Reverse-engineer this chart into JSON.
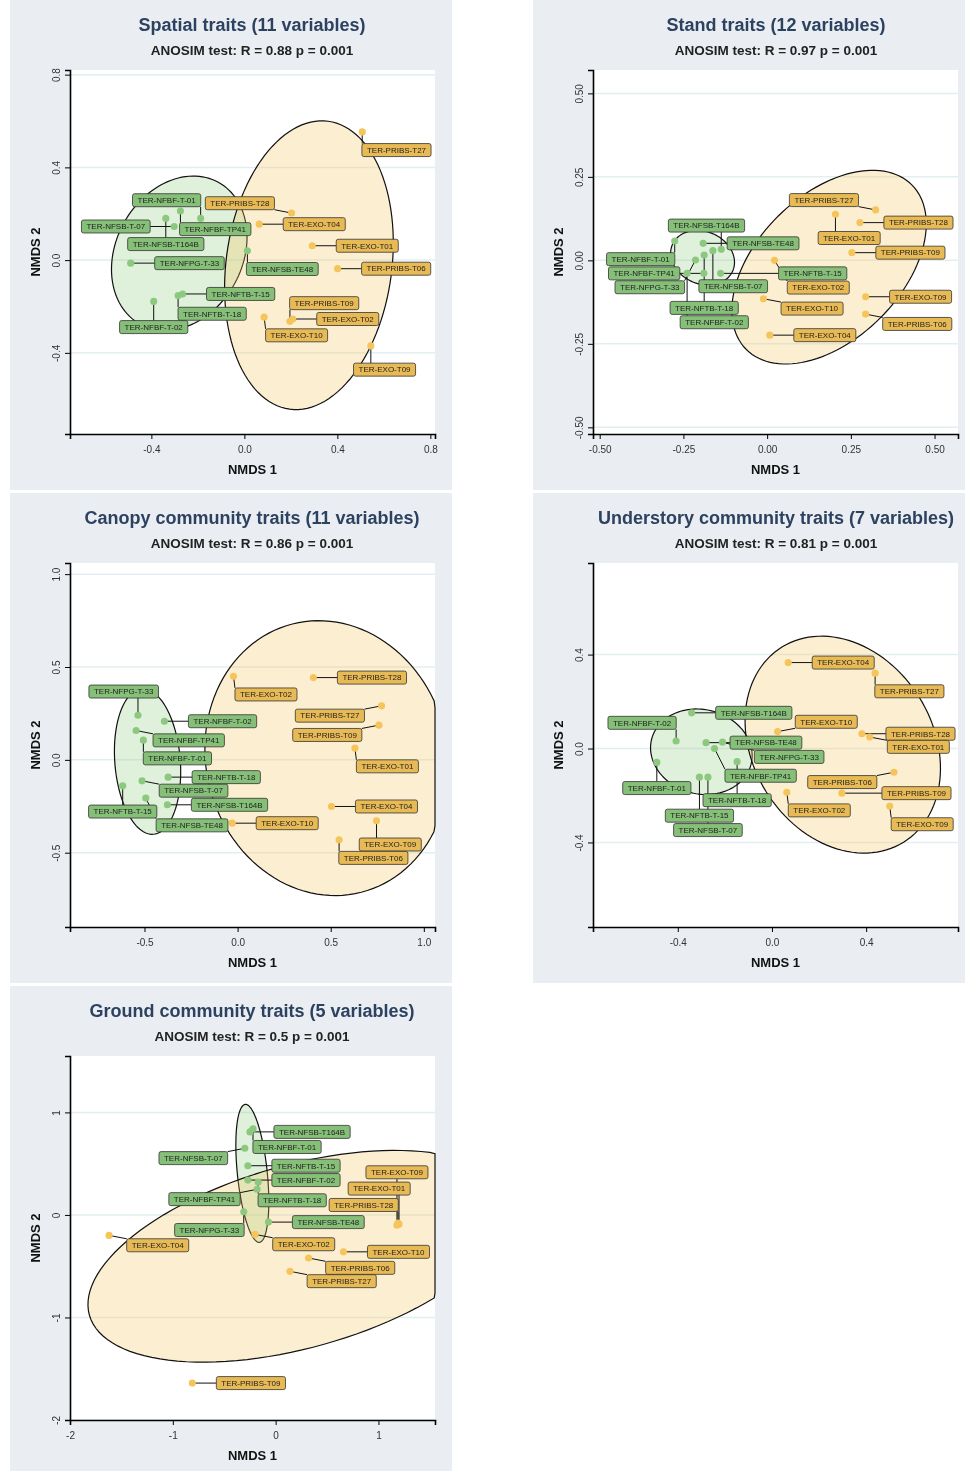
{
  "chart_data": [
    {
      "type": "scatter",
      "title": "Spatial traits (11 variables)",
      "subtitle": "ANOSIM test: R = 0.88 p = 0.001",
      "xlabel": "NMDS 1",
      "ylabel": "NMDS 2",
      "xlim": [
        -0.75,
        0.82
      ],
      "ylim": [
        -0.75,
        0.82
      ],
      "xticks": [
        -0.4,
        {
          "value": 0,
          "label": "0.0"
        },
        0.4,
        0.8
      ],
      "yticks": [
        -0.4,
        {
          "value": 0,
          "label": "0.0"
        },
        0.4,
        0.8
      ],
      "grid": "y",
      "marker": "circle",
      "series": [
        {
          "color": "#8cc97f",
          "x": [
            -0.275,
            -0.338,
            -0.188,
            -0.489,
            -0.302,
            -0.266,
            -0.285,
            0.013,
            -0.39
          ],
          "values": [
            0.212,
            0.18,
            0.18,
            -0.013,
            0.145,
            -0.146,
            -0.153,
            0.04,
            -0.178
          ],
          "value_labels": [
            "TER-NFBF-TP41",
            "TER-NFSB-T164B",
            "TER-NFBF-T-01",
            "TER-NFPG-T-33",
            "TER-NFSB-T-07",
            "TER-NFTB-T-15",
            "TER-NFTB-T-18",
            "TER-NFSB-TE48",
            "TER-NFBF-T-02"
          ]
        },
        {
          "color": "#f5c45a",
          "x": [
            0.064,
            0.507,
            0.203,
            0.292,
            0.401,
            0.085,
            0.208,
            0.196,
            0.544
          ],
          "values": [
            0.155,
            0.553,
            0.203,
            0.062,
            -0.037,
            -0.246,
            -0.254,
            -0.264,
            -0.37
          ],
          "value_labels": [
            "TER-EXO-T04",
            "TER-PRIBS-T27",
            "TER-PRIBS-T28",
            "TER-EXO-T01",
            "TER-PRIBS-T06",
            "TER-EXO-T10",
            "TER-EXO-T02",
            "TER-PRIBS-T09",
            "TER-EXO-T09"
          ]
        }
      ]
    },
    {
      "type": "scatter",
      "title": "Stand traits (12 variables)",
      "subtitle": "ANOSIM test: R = 0.97 p = 0.001",
      "xlabel": "NMDS 1",
      "ylabel": "NMDS 2",
      "xlim": [
        -0.52,
        0.57
      ],
      "ylim": [
        -0.52,
        0.57
      ],
      "xticks": [
        {
          "value": -0.5,
          "label": "-0.50"
        },
        -0.25,
        {
          "value": 0,
          "label": "0.00"
        },
        0.25,
        {
          "value": 0.5,
          "label": "0.50"
        }
      ],
      "yticks": [
        {
          "value": -0.5,
          "label": "-0.50"
        },
        -0.25,
        {
          "value": 0,
          "label": "0.00"
        },
        0.25,
        {
          "value": 0.5,
          "label": "0.50"
        }
      ],
      "grid": "y",
      "marker": "circle",
      "series": [
        {
          "color": "#8cc97f",
          "x": [
            -0.276,
            -0.191,
            -0.137,
            -0.162,
            -0.188,
            -0.214,
            -0.239,
            -0.189,
            -0.139
          ],
          "values": [
            0.058,
            0.051,
            0.033,
            0.029,
            0.016,
            0.001,
            -0.039,
            -0.039,
            -0.039
          ],
          "value_labels": [
            "TER-NFBF-T-01",
            "TER-NFSB-TE48",
            "TER-NFSB-T164B",
            "TER-NFSB-T-07",
            "TER-NFTB-T-18",
            "TER-NFPG-T-33",
            "TER-NFBF-T-02",
            "TER-NFBF-TP41",
            "TER-NFTB-T-15"
          ]
        },
        {
          "color": "#f5c45a",
          "x": [
            0.204,
            0.324,
            0.277,
            0.253,
            0.022,
            0.294,
            0.294,
            -0.011,
            0.008
          ],
          "values": [
            0.138,
            0.151,
            0.113,
            0.023,
            0.0,
            -0.109,
            -0.161,
            -0.115,
            -0.224
          ],
          "value_labels": [
            "TER-EXO-T01",
            "TER-PRIBS-T27",
            "TER-PRIBS-T28",
            "TER-PRIBS-T09",
            "TER-EXO-T02",
            "TER-EXO-T09",
            "TER-PRIBS-T06",
            "TER-EXO-T10",
            "TER-EXO-T04"
          ]
        }
      ]
    },
    {
      "type": "scatter",
      "title": "Canopy community traits (11 variables)",
      "subtitle": "ANOSIM test: R = 0.86 p = 0.001",
      "xlabel": "NMDS 1",
      "ylabel": "NMDS 2",
      "xlim": [
        -0.9,
        1.06
      ],
      "ylim": [
        -0.9,
        1.06
      ],
      "xticks": [
        -0.5,
        {
          "value": 0,
          "label": "0.0"
        },
        0.5,
        {
          "value": 1,
          "label": "1.0"
        }
      ],
      "yticks": [
        -0.5,
        {
          "value": 0,
          "label": "0.0"
        },
        0.5,
        {
          "value": 1,
          "label": "1.0"
        }
      ],
      "grid": "y",
      "marker": "circle",
      "series": [
        {
          "color": "#8cc97f",
          "x": [
            -0.535,
            -0.545,
            -0.393,
            -0.506,
            -0.513,
            -0.373,
            -0.617,
            -0.377,
            -0.493
          ],
          "values": [
            0.24,
            0.158,
            0.208,
            0.106,
            -0.113,
            -0.093,
            -0.14,
            -0.242,
            -0.206
          ],
          "value_labels": [
            "TER-NFPG-T-33",
            "TER-NFBF-TP41",
            "TER-NFBF-T-02",
            "TER-NFBF-T-01",
            "TER-NFSB-T-07",
            "TER-NFTB-T-18",
            "TER-NFTB-T-15",
            "TER-NFSB-T164B",
            "TER-NFSB-TE48"
          ]
        },
        {
          "color": "#f5c45a",
          "x": [
            -0.022,
            0.407,
            0.773,
            0.759,
            0.63,
            0.746,
            0.504,
            0.545,
            -0.029
          ],
          "values": [
            0.45,
            0.443,
            0.291,
            0.187,
            0.063,
            -0.328,
            -0.251,
            -0.43,
            -0.341
          ],
          "value_labels": [
            "TER-EXO-T02",
            "TER-PRIBS-T28",
            "TER-PRIBS-T27",
            "TER-PRIBS-T09",
            "TER-EXO-T01",
            "TER-EXO-T09",
            "TER-EXO-T04",
            "TER-PRIBS-T06",
            "TER-EXO-T10"
          ]
        }
      ]
    },
    {
      "type": "scatter",
      "title": "Understory community traits (7 variables)",
      "subtitle": "ANOSIM test: R = 0.81 p = 0.001",
      "xlabel": "NMDS 1",
      "ylabel": "NMDS 2",
      "xlim": [
        -0.76,
        0.79
      ],
      "ylim": [
        -0.76,
        0.79
      ],
      "xticks": [
        -0.4,
        {
          "value": 0,
          "label": "0.0"
        },
        0.4
      ],
      "yticks": [
        -0.4,
        {
          "value": 0,
          "label": "0.0"
        },
        0.4
      ],
      "grid": "y",
      "marker": "circle",
      "series": [
        {
          "color": "#8cc97f",
          "x": [
            -0.341,
            -0.28,
            -0.21,
            -0.407,
            -0.244,
            -0.148,
            -0.489,
            -0.308,
            -0.272
          ],
          "values": [
            0.152,
            0.025,
            0.027,
            0.032,
            0.0,
            -0.056,
            -0.059,
            -0.122,
            -0.122
          ],
          "value_labels": [
            "TER-NFSB-T164B",
            "TER-NFSB-TE48",
            "TER-NFPG-T-33",
            "TER-NFBF-T-02",
            "TER-NFBF-TP41",
            "TER-NFTB-T-18",
            "TER-NFBF-T-01",
            "TER-NFTB-T-15",
            "TER-NFSB-T-07"
          ]
        },
        {
          "color": "#f5c45a",
          "x": [
            0.069,
            0.438,
            0.024,
            0.382,
            0.415,
            0.518,
            0.063,
            0.297,
            0.5
          ],
          "values": [
            0.366,
            0.321,
            0.072,
            0.063,
            0.049,
            -0.101,
            -0.186,
            -0.19,
            -0.245
          ],
          "value_labels": [
            "TER-EXO-T04",
            "TER-PRIBS-T27",
            "TER-EXO-T10",
            "TER-PRIBS-T28",
            "TER-EXO-T01",
            "TER-PRIBS-T06",
            "TER-EXO-T02",
            "TER-PRIBS-T09",
            "TER-EXO-T09"
          ]
        }
      ]
    },
    {
      "type": "scatter",
      "title": "Ground community traits (5 variables)",
      "subtitle": "ANOSIM test: R = 0.5 p = 0.001",
      "xlabel": "NMDS 1",
      "ylabel": "NMDS 2",
      "xlim": [
        -2,
        1.55
      ],
      "ylim": [
        -2,
        1.55
      ],
      "xticks": [
        -2,
        -1,
        0,
        1
      ],
      "yticks": [
        -2,
        -1,
        0,
        1
      ],
      "grid": "y",
      "marker": "circle",
      "series": [
        {
          "color": "#8cc97f",
          "x": [
            -0.25,
            -0.22,
            -0.3,
            -0.27,
            -0.27,
            -0.17,
            -0.18,
            -0.31,
            -0.07
          ],
          "values": [
            0.81,
            0.84,
            0.65,
            0.48,
            0.34,
            0.32,
            0.25,
            0.03,
            -0.07
          ],
          "value_labels": [
            "TER-NFSB-T164B",
            "TER-NFBF-T-01",
            "TER-NFSB-T-07",
            "TER-NFTB-T-15",
            "TER-NFBF-T-02",
            "TER-NFTB-T-18",
            "TER-NFBF-TP41",
            "TER-NFPG-T-33",
            "TER-NFSB-TE48"
          ]
        },
        {
          "color": "#f5c45a",
          "x": [
            -1.62,
            -0.2,
            0.32,
            0.14,
            0.66,
            1.19,
            1.2,
            1.18,
            -0.81
          ],
          "values": [
            -0.2,
            -0.19,
            -0.42,
            -0.55,
            -0.36,
            -0.08,
            -0.09,
            -0.1,
            -1.64
          ],
          "value_labels": [
            "TER-EXO-T04",
            "TER-EXO-T02",
            "TER-PRIBS-T06",
            "TER-PRIBS-T27",
            "TER-EXO-T10",
            "TER-PRIBS-T28",
            "TER-EXO-T01",
            "TER-EXO-T09",
            "TER-PRIBS-T09"
          ]
        }
      ]
    }
  ]
}
